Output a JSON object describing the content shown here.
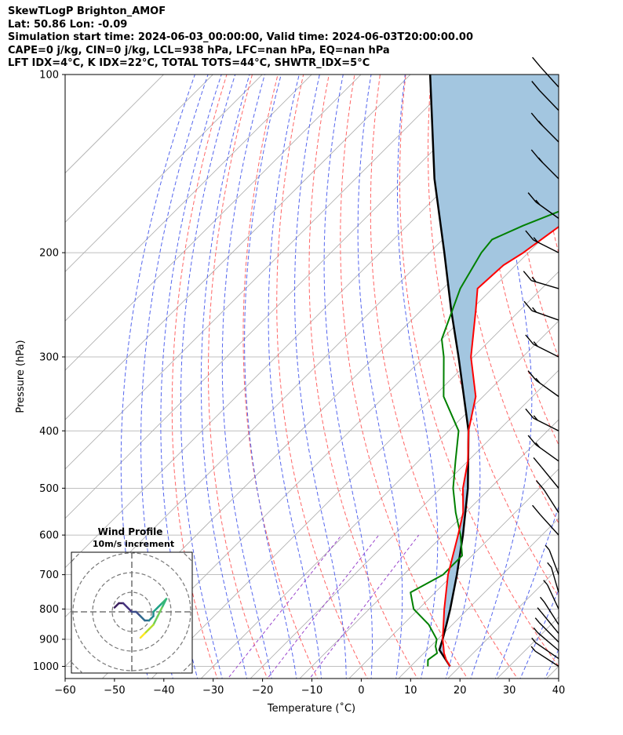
{
  "header": {
    "line1": "SkewTLogP Brighton_AMOF",
    "line2": "Lat: 50.86   Lon: -0.09",
    "line3": "Simulation start time: 2024-06-03_00:00:00, Valid time: 2024-06-03T20:00:00.00",
    "line4": "CAPE=0 j/kg, CIN=0 j/kg, LCL=938 hPa, LFC=nan hPa, EQ=nan hPa",
    "line5": "LFT IDX=4°C, K IDX=22°C, TOTAL TOTS=44°C, SHWTR_IDX=5°C"
  },
  "colors": {
    "temperature": "#ff0000",
    "dewpoint": "#008000",
    "parcel": "#000000",
    "shade": "#a3c6e0",
    "dry_adiabat": "#ff6666",
    "moist_adiabat": "#5566ee",
    "mixing_ratio": "#9944cc",
    "isotherm": "#aaaaaa"
  },
  "chart_data": [
    {
      "type": "line",
      "chart_kind": "skew-T log-P",
      "xlabel": "Temperature (˚C)",
      "ylabel": "Pressure (hPa)",
      "xlim": [
        -60,
        40
      ],
      "ylim": [
        1050,
        100
      ],
      "y_scale": "log",
      "grid": true,
      "x_ticks": [
        -60,
        -50,
        -40,
        -30,
        -20,
        -10,
        0,
        10,
        20,
        30,
        40
      ],
      "x_tick_labels": [
        "−60",
        "−50",
        "−40",
        "−30",
        "−20",
        "−10",
        "0",
        "10",
        "20",
        "30",
        "40"
      ],
      "y_ticks": [
        100,
        200,
        300,
        400,
        500,
        600,
        700,
        800,
        900,
        1000
      ],
      "y_tick_labels": [
        "100",
        "200",
        "300",
        "400",
        "500",
        "600",
        "700",
        "800",
        "900",
        "1000"
      ],
      "series": [
        {
          "role": "temperature",
          "points": [
            {
              "p": 1000,
              "t": 18.0
            },
            {
              "p": 975,
              "t": 15.9
            },
            {
              "p": 950,
              "t": 14.1
            },
            {
              "p": 925,
              "t": 12.6
            },
            {
              "p": 900,
              "t": 11.0
            },
            {
              "p": 850,
              "t": 8.2
            },
            {
              "p": 800,
              "t": 5.2
            },
            {
              "p": 700,
              "t": -1.0
            },
            {
              "p": 600,
              "t": -7.0
            },
            {
              "p": 550,
              "t": -10.5
            },
            {
              "p": 500,
              "t": -15.5
            },
            {
              "p": 450,
              "t": -20.0
            },
            {
              "p": 400,
              "t": -26.0
            },
            {
              "p": 350,
              "t": -31.5
            },
            {
              "p": 300,
              "t": -40.5
            },
            {
              "p": 250,
              "t": -49.0
            },
            {
              "p": 230,
              "t": -53.0
            },
            {
              "p": 210,
              "t": -52.5
            },
            {
              "p": 200,
              "t": -51.0
            },
            {
              "p": 180,
              "t": -49.0
            },
            {
              "p": 170,
              "t": -48.5
            },
            {
              "p": 160,
              "t": -48.0
            },
            {
              "p": 140,
              "t": -48.0
            },
            {
              "p": 120,
              "t": -51.0
            },
            {
              "p": 110,
              "t": -54.0
            },
            {
              "p": 100,
              "t": -56.5
            }
          ]
        },
        {
          "role": "dewpoint",
          "points": [
            {
              "p": 1000,
              "t": 13.5
            },
            {
              "p": 975,
              "t": 12.2
            },
            {
              "p": 950,
              "t": 12.7
            },
            {
              "p": 925,
              "t": 11.0
            },
            {
              "p": 900,
              "t": 9.8
            },
            {
              "p": 850,
              "t": 5.2
            },
            {
              "p": 800,
              "t": -1.0
            },
            {
              "p": 750,
              "t": -5.0
            },
            {
              "p": 700,
              "t": -2.0
            },
            {
              "p": 650,
              "t": -2.0
            },
            {
              "p": 600,
              "t": -6.5
            },
            {
              "p": 550,
              "t": -12.0
            },
            {
              "p": 500,
              "t": -17.5
            },
            {
              "p": 450,
              "t": -22.5
            },
            {
              "p": 400,
              "t": -28.0
            },
            {
              "p": 350,
              "t": -38.0
            },
            {
              "p": 300,
              "t": -46.0
            },
            {
              "p": 280,
              "t": -50.0
            },
            {
              "p": 230,
              "t": -56.5
            },
            {
              "p": 200,
              "t": -59.5
            },
            {
              "p": 190,
              "t": -60.0
            },
            {
              "p": 180,
              "t": -56.5
            },
            {
              "p": 170,
              "t": -52.0
            },
            {
              "p": 160,
              "t": -50.0
            },
            {
              "p": 150,
              "t": -58.0
            },
            {
              "p": 100,
              "t": -74.0
            }
          ]
        },
        {
          "role": "parcel",
          "points": [
            {
              "p": 1000,
              "t": 18.0
            },
            {
              "p": 938,
              "t": 12.5
            },
            {
              "p": 900,
              "t": 11.0
            },
            {
              "p": 850,
              "t": 8.8
            },
            {
              "p": 800,
              "t": 6.4
            },
            {
              "p": 700,
              "t": 0.8
            },
            {
              "p": 600,
              "t": -6.0
            },
            {
              "p": 500,
              "t": -14.5
            },
            {
              "p": 400,
              "t": -26.0
            },
            {
              "p": 300,
              "t": -43.0
            },
            {
              "p": 250,
              "t": -54.0
            },
            {
              "p": 200,
              "t": -67.0
            },
            {
              "p": 150,
              "t": -84.0
            },
            {
              "p": 100,
              "t": -106.0
            }
          ]
        }
      ],
      "wind_barbs": [
        {
          "p": 1000,
          "u": 4,
          "v": 3
        },
        {
          "p": 970,
          "u": 5,
          "v": 4
        },
        {
          "p": 940,
          "u": 5,
          "v": 5
        },
        {
          "p": 910,
          "u": 5,
          "v": 6
        },
        {
          "p": 880,
          "u": 4,
          "v": 6
        },
        {
          "p": 850,
          "u": 3,
          "v": 6
        },
        {
          "p": 800,
          "u": 2,
          "v": 6
        },
        {
          "p": 750,
          "u": 1,
          "v": 6
        },
        {
          "p": 700,
          "u": 2,
          "v": 8
        },
        {
          "p": 600,
          "u": 6,
          "v": 8
        },
        {
          "p": 550,
          "u": 5,
          "v": 10
        },
        {
          "p": 500,
          "u": 8,
          "v": 12
        },
        {
          "p": 450,
          "u": 12,
          "v": 10
        },
        {
          "p": 400,
          "u": 14,
          "v": 8
        },
        {
          "p": 350,
          "u": 12,
          "v": 10
        },
        {
          "p": 300,
          "u": 14,
          "v": 8
        },
        {
          "p": 260,
          "u": 15,
          "v": 6
        },
        {
          "p": 230,
          "u": 15,
          "v": 5
        },
        {
          "p": 200,
          "u": 14,
          "v": 8
        },
        {
          "p": 175,
          "u": 12,
          "v": 10
        },
        {
          "p": 150,
          "u": 10,
          "v": 12
        },
        {
          "p": 130,
          "u": 10,
          "v": 12
        },
        {
          "p": 115,
          "u": 8,
          "v": 10
        },
        {
          "p": 105,
          "u": 6,
          "v": 8
        }
      ]
    },
    {
      "type": "line",
      "chart_kind": "hodograph",
      "title": "Wind Profile",
      "subtitle": "10m/s increment",
      "ring_step": 10,
      "points": [
        {
          "u": -4,
          "v": 1
        },
        {
          "u": -3,
          "v": 2
        },
        {
          "u": -2,
          "v": 2
        },
        {
          "u": -1,
          "v": 1
        },
        {
          "u": 0,
          "v": 0
        },
        {
          "u": 1,
          "v": 0
        },
        {
          "u": 2,
          "v": -1
        },
        {
          "u": 3,
          "v": -2
        },
        {
          "u": 4,
          "v": -2
        },
        {
          "u": 5,
          "v": -1
        },
        {
          "u": 5,
          "v": 0
        },
        {
          "u": 6,
          "v": 1
        },
        {
          "u": 7,
          "v": 2
        },
        {
          "u": 8,
          "v": 3
        },
        {
          "u": 7,
          "v": 1
        },
        {
          "u": 6,
          "v": -1
        },
        {
          "u": 5,
          "v": -3
        },
        {
          "u": 4,
          "v": -4
        },
        {
          "u": 3,
          "v": -5
        },
        {
          "u": 2,
          "v": -6
        }
      ]
    }
  ]
}
